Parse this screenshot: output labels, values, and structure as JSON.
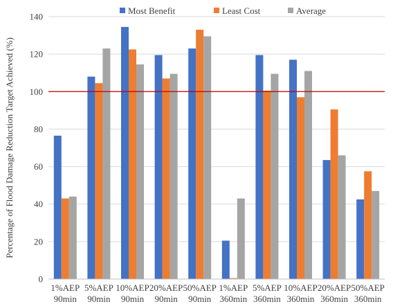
{
  "chart_data": {
    "type": "bar",
    "title": "",
    "xlabel": "",
    "ylabel": "Percentage of Flood Damage Reduction Target Achieved (%)",
    "ylim": [
      0,
      140
    ],
    "ytick_step": 20,
    "grid": "horizontal",
    "legend_position": "top",
    "categories": [
      [
        "1%AEP",
        "90min"
      ],
      [
        "5%AEP",
        "90min"
      ],
      [
        "10%AEP",
        "90min"
      ],
      [
        "20%AEP",
        "90min"
      ],
      [
        "50%AEP",
        "90min"
      ],
      [
        "1%AEP",
        "360min"
      ],
      [
        "5%AEP",
        "360min"
      ],
      [
        "10%AEP",
        "360min"
      ],
      [
        "20%AEP",
        "360min"
      ],
      [
        "50%AEP",
        "360min"
      ]
    ],
    "series": [
      {
        "name": "Most Benefit",
        "color": "#4472C4",
        "values": [
          76.5,
          108,
          134.5,
          119.5,
          123,
          20.5,
          119.5,
          117,
          63.5,
          42.5
        ]
      },
      {
        "name": "Least Cost",
        "color": "#ED7D31",
        "values": [
          43,
          104.5,
          122.5,
          107,
          133,
          0.5,
          100.5,
          97,
          90.5,
          57.5
        ]
      },
      {
        "name": "Average",
        "color": "#A5A5A5",
        "values": [
          44,
          123,
          114.5,
          109.5,
          129.5,
          43,
          109.5,
          111,
          66,
          47
        ]
      }
    ],
    "reference_line": {
      "value": 100,
      "color": "#C00000"
    },
    "colors": {
      "grid": "#D9D9D9",
      "axis": "#BFBFBF",
      "text": "#404040"
    }
  }
}
